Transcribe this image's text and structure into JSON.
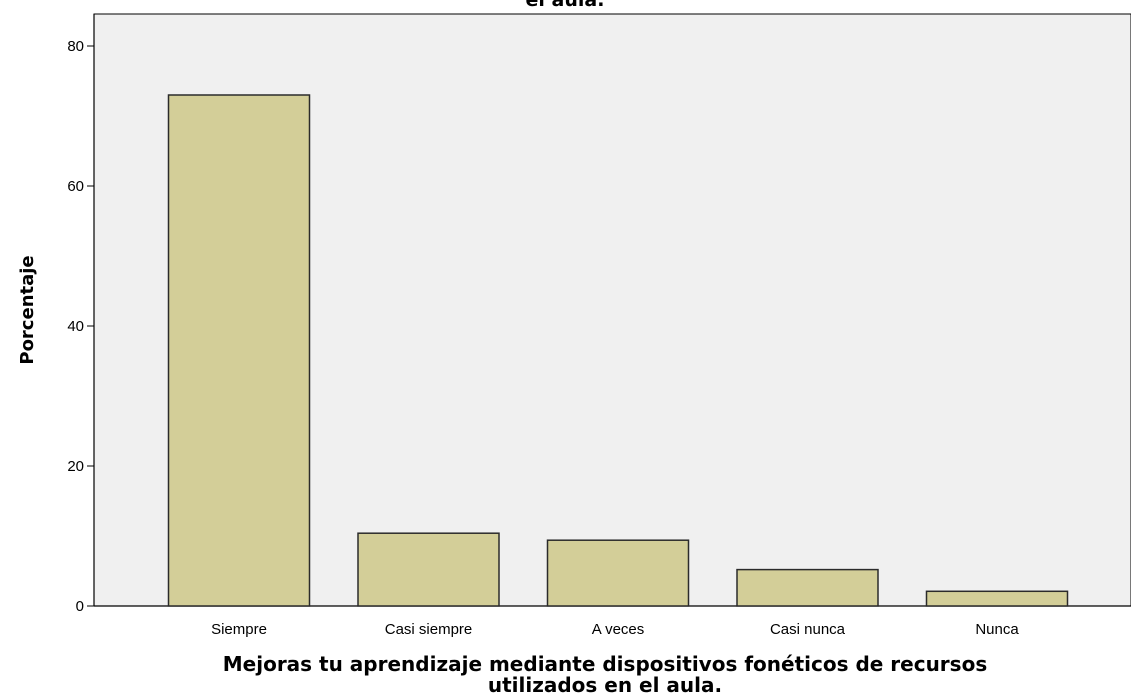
{
  "chart_data": {
    "type": "bar",
    "title": "el aula.",
    "xlabel_line1": "Mejoras tu aprendizaje mediante dispositivos fonéticos de recursos",
    "xlabel_line2": "utilizados en el aula.",
    "ylabel": "Porcentaje",
    "categories": [
      "Siempre",
      "Casi siempre",
      "A veces",
      "Casi nunca",
      "Nunca"
    ],
    "values": [
      73.0,
      10.4,
      9.4,
      5.2,
      2.1
    ],
    "yticks": [
      "0",
      "20",
      "40",
      "60",
      "80"
    ],
    "ylim": [
      0,
      84
    ],
    "grid": false,
    "legend": "none",
    "colors": {
      "bar_fill": "#d3ce98",
      "bar_stroke": "#2b2b2b",
      "plot_background": "#f0f0f0",
      "axis": "#000000"
    }
  }
}
